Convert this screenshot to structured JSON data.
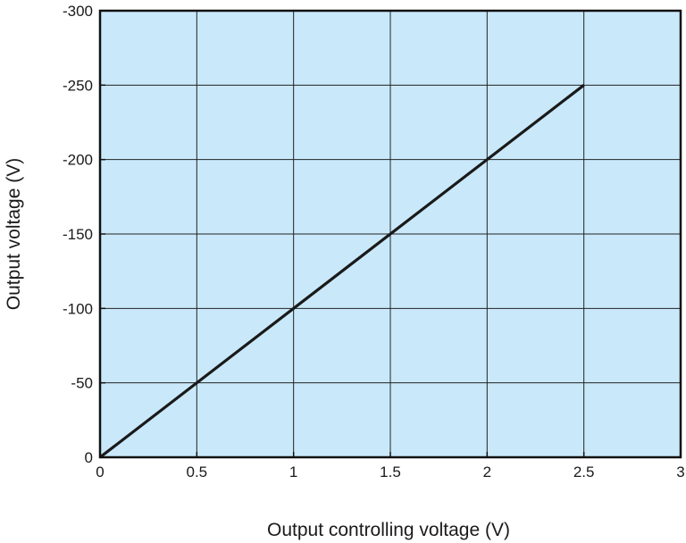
{
  "chart_data": {
    "type": "line",
    "xlabel": "Output controlling voltage (V)",
    "ylabel": "Output voltage (V)",
    "xlim": [
      0,
      3
    ],
    "ylim": [
      0,
      -300
    ],
    "y_axis_inverted": true,
    "grid": true,
    "colors": {
      "plot_background": "#c9e9fb",
      "line": "#1a1a1a",
      "grid": "#222222",
      "frame": "#111111"
    },
    "x_ticks": [
      "0",
      "0.5",
      "1",
      "1.5",
      "2",
      "2.5",
      "3"
    ],
    "y_ticks": [
      "0",
      "-50",
      "-100",
      "-150",
      "-200",
      "-250",
      "-300"
    ],
    "series": [
      {
        "x": [
          0,
          2.5
        ],
        "y": [
          0,
          -250
        ]
      }
    ]
  }
}
